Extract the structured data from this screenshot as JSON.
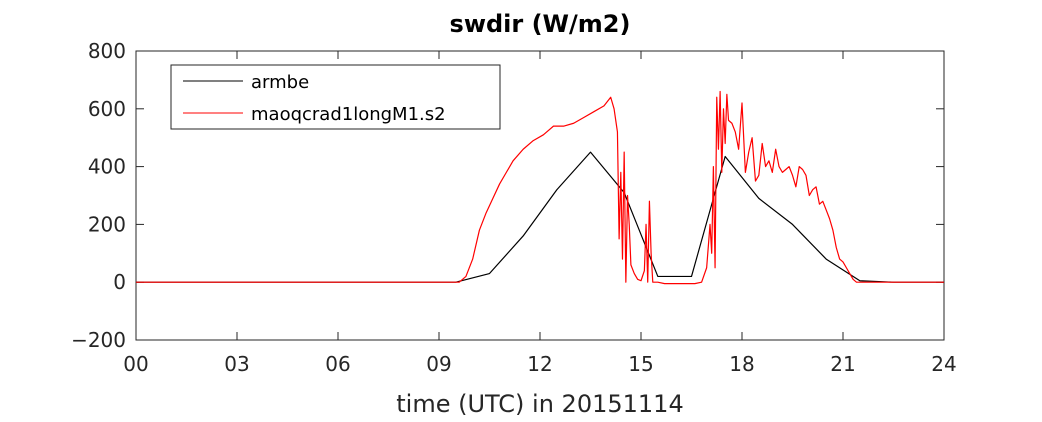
{
  "chart_data": {
    "type": "line",
    "title": "swdir  (W/m2)",
    "xlabel": "time (UTC) in 20151114",
    "ylabel": "",
    "xlim": [
      0,
      24
    ],
    "ylim": [
      -200,
      800
    ],
    "xticks": [
      0,
      3,
      6,
      9,
      12,
      15,
      18,
      21,
      24
    ],
    "xtick_labels": [
      "00",
      "03",
      "06",
      "09",
      "12",
      "15",
      "18",
      "21",
      "24"
    ],
    "yticks": [
      -200,
      0,
      200,
      400,
      600,
      800
    ],
    "ytick_labels": [
      "−200",
      "0",
      "200",
      "400",
      "600",
      "800"
    ],
    "grid": false,
    "legend_position": "top-left",
    "series": [
      {
        "name": "armbe",
        "color": "#000000",
        "x": [
          0,
          9.5,
          10.5,
          11.5,
          12.5,
          13.5,
          14.5,
          15.5,
          16.5,
          17.5,
          18.5,
          19.5,
          20.5,
          21.5,
          22.5,
          24
        ],
        "y": [
          0,
          0,
          30,
          160,
          320,
          450,
          310,
          20,
          20,
          435,
          290,
          200,
          80,
          5,
          0,
          0
        ]
      },
      {
        "name": "maoqcrad1longM1.s2",
        "color": "#ff0000",
        "x": [
          0,
          9.6,
          9.8,
          10.0,
          10.2,
          10.4,
          10.6,
          10.8,
          11.0,
          11.2,
          11.5,
          11.8,
          12.1,
          12.4,
          12.7,
          13.0,
          13.3,
          13.6,
          13.9,
          14.1,
          14.2,
          14.3,
          14.35,
          14.4,
          14.45,
          14.5,
          14.55,
          14.6,
          14.65,
          14.7,
          14.8,
          14.9,
          15.0,
          15.1,
          15.15,
          15.2,
          15.25,
          15.3,
          15.35,
          15.4,
          15.5,
          15.7,
          16.0,
          16.3,
          16.6,
          16.8,
          16.95,
          17.05,
          17.1,
          17.15,
          17.2,
          17.25,
          17.3,
          17.35,
          17.4,
          17.45,
          17.5,
          17.55,
          17.6,
          17.7,
          17.8,
          17.9,
          18.0,
          18.1,
          18.2,
          18.3,
          18.4,
          18.5,
          18.6,
          18.7,
          18.8,
          18.9,
          19.0,
          19.1,
          19.2,
          19.3,
          19.4,
          19.5,
          19.6,
          19.7,
          19.8,
          19.9,
          20.0,
          20.1,
          20.2,
          20.3,
          20.4,
          20.5,
          20.6,
          20.7,
          20.8,
          20.9,
          21.0,
          21.1,
          21.2,
          21.3,
          21.4,
          21.6,
          22.0,
          24
        ],
        "y": [
          0,
          0,
          20,
          80,
          180,
          240,
          290,
          340,
          380,
          420,
          460,
          490,
          510,
          540,
          540,
          550,
          570,
          590,
          610,
          640,
          600,
          520,
          150,
          380,
          80,
          450,
          0,
          300,
          200,
          60,
          30,
          10,
          5,
          40,
          200,
          0,
          280,
          100,
          0,
          0,
          0,
          -5,
          -5,
          -5,
          -5,
          0,
          50,
          200,
          100,
          400,
          50,
          640,
          460,
          660,
          380,
          600,
          480,
          650,
          560,
          550,
          520,
          460,
          620,
          380,
          450,
          500,
          350,
          370,
          480,
          400,
          420,
          380,
          460,
          400,
          380,
          390,
          400,
          370,
          330,
          400,
          390,
          370,
          300,
          320,
          330,
          270,
          280,
          250,
          220,
          180,
          120,
          80,
          70,
          50,
          30,
          10,
          0,
          0,
          0,
          0
        ]
      }
    ]
  }
}
